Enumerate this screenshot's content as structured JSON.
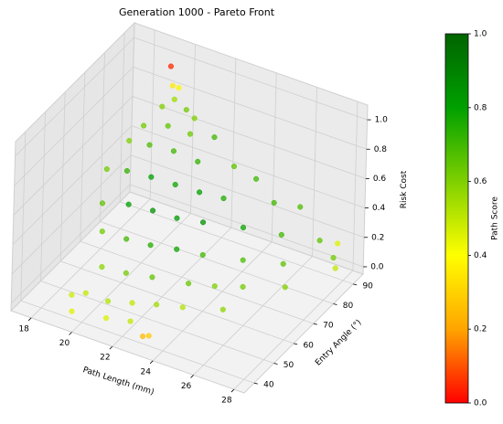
{
  "chart_data": {
    "type": "scatter3d",
    "title": "Generation 1000 - Pareto Front",
    "xlabel": "Path Length (mm)",
    "ylabel": "Entry Angle (°)",
    "zlabel": "Risk Cost",
    "colorbar_label": "Path Score",
    "xlim": [
      17,
      28.5
    ],
    "xticks": [
      18,
      20,
      22,
      24,
      26,
      28
    ],
    "ylim": [
      35,
      95
    ],
    "yticks": [
      40,
      50,
      60,
      70,
      80,
      90
    ],
    "zlim": [
      -0.05,
      1.1
    ],
    "zticks": [
      {
        "value": 0,
        "label": "0.0"
      },
      {
        "value": 0.2,
        "label": "0.2"
      },
      {
        "value": 0.4,
        "label": "0.4"
      },
      {
        "value": 0.6,
        "label": "0.6"
      },
      {
        "value": 0.8,
        "label": "0.8"
      },
      {
        "value": 1,
        "label": "1.0"
      }
    ],
    "clim": [
      0,
      1
    ],
    "cticks": [
      {
        "value": 0,
        "label": "0.0"
      },
      {
        "value": 0.2,
        "label": "0.2"
      },
      {
        "value": 0.4,
        "label": "0.4"
      },
      {
        "value": 0.6,
        "label": "0.6"
      },
      {
        "value": 0.8,
        "label": "0.8"
      },
      {
        "value": 1,
        "label": "1.0"
      }
    ],
    "colormap": [
      "#ff0000",
      "#ffa500",
      "#ffff00",
      "#7fd000",
      "#00a000",
      "#006400"
    ],
    "x": [
      19.5,
      19.8,
      20.1,
      20,
      19.5,
      20.5,
      21,
      19,
      20,
      21,
      22,
      18.5,
      19.5,
      20.5,
      21.5,
      23,
      24,
      18.2,
      19,
      20,
      21,
      22,
      23,
      25,
      26,
      18.5,
      19.5,
      20.5,
      21.5,
      22.5,
      24,
      25.5,
      27,
      19,
      20,
      21,
      22,
      23,
      24.5,
      26,
      27.5,
      27.8,
      19.5,
      20.5,
      21.5,
      23,
      24,
      25,
      26.5,
      19,
      19.5,
      20.5,
      21.5,
      22.5,
      23.5,
      25,
      19.5,
      21,
      22,
      23,
      23.2,
      27.5
    ],
    "y": [
      88,
      86,
      86,
      85,
      84,
      86,
      85,
      80,
      82,
      83,
      85,
      78,
      78,
      80,
      82,
      85,
      86,
      70,
      72,
      74,
      76,
      78,
      80,
      85,
      88,
      65,
      68,
      70,
      72,
      75,
      80,
      84,
      88,
      60,
      62,
      64,
      67,
      70,
      75,
      80,
      90,
      88,
      55,
      57,
      60,
      63,
      66,
      70,
      76,
      45,
      47,
      48,
      50,
      52,
      55,
      60,
      40,
      42,
      44,
      40,
      41,
      92
    ],
    "z": [
      1.02,
      0.93,
      0.93,
      0.86,
      0.8,
      0.8,
      0.78,
      0.7,
      0.72,
      0.7,
      0.7,
      0.6,
      0.62,
      0.6,
      0.55,
      0.55,
      0.5,
      0.5,
      0.5,
      0.48,
      0.45,
      0.42,
      0.4,
      0.4,
      0.38,
      0.35,
      0.35,
      0.33,
      0.3,
      0.28,
      0.25,
      0.22,
      0.2,
      0.25,
      0.22,
      0.2,
      0.18,
      0.15,
      0.12,
      0.1,
      0.08,
      0.05,
      0.1,
      0.08,
      0.06,
      0.05,
      0.04,
      0.03,
      0.02,
      0.02,
      0.03,
      0.01,
      0.02,
      0.03,
      0.02,
      0.01,
      0,
      0,
      0,
      0,
      0,
      0.15
    ],
    "c": [
      0.05,
      0.35,
      0.38,
      0.55,
      0.6,
      0.62,
      0.6,
      0.62,
      0.65,
      0.63,
      0.7,
      0.6,
      0.68,
      0.7,
      0.72,
      0.65,
      0.7,
      0.62,
      0.72,
      0.8,
      0.78,
      0.8,
      0.75,
      0.7,
      0.68,
      0.65,
      0.8,
      0.85,
      0.82,
      0.85,
      0.78,
      0.7,
      0.65,
      0.62,
      0.7,
      0.75,
      0.78,
      0.7,
      0.68,
      0.66,
      0.62,
      0.5,
      0.58,
      0.62,
      0.65,
      0.64,
      0.6,
      0.62,
      0.6,
      0.48,
      0.5,
      0.52,
      0.5,
      0.55,
      0.52,
      0.58,
      0.45,
      0.46,
      0.5,
      0.25,
      0.28,
      0.45
    ]
  }
}
